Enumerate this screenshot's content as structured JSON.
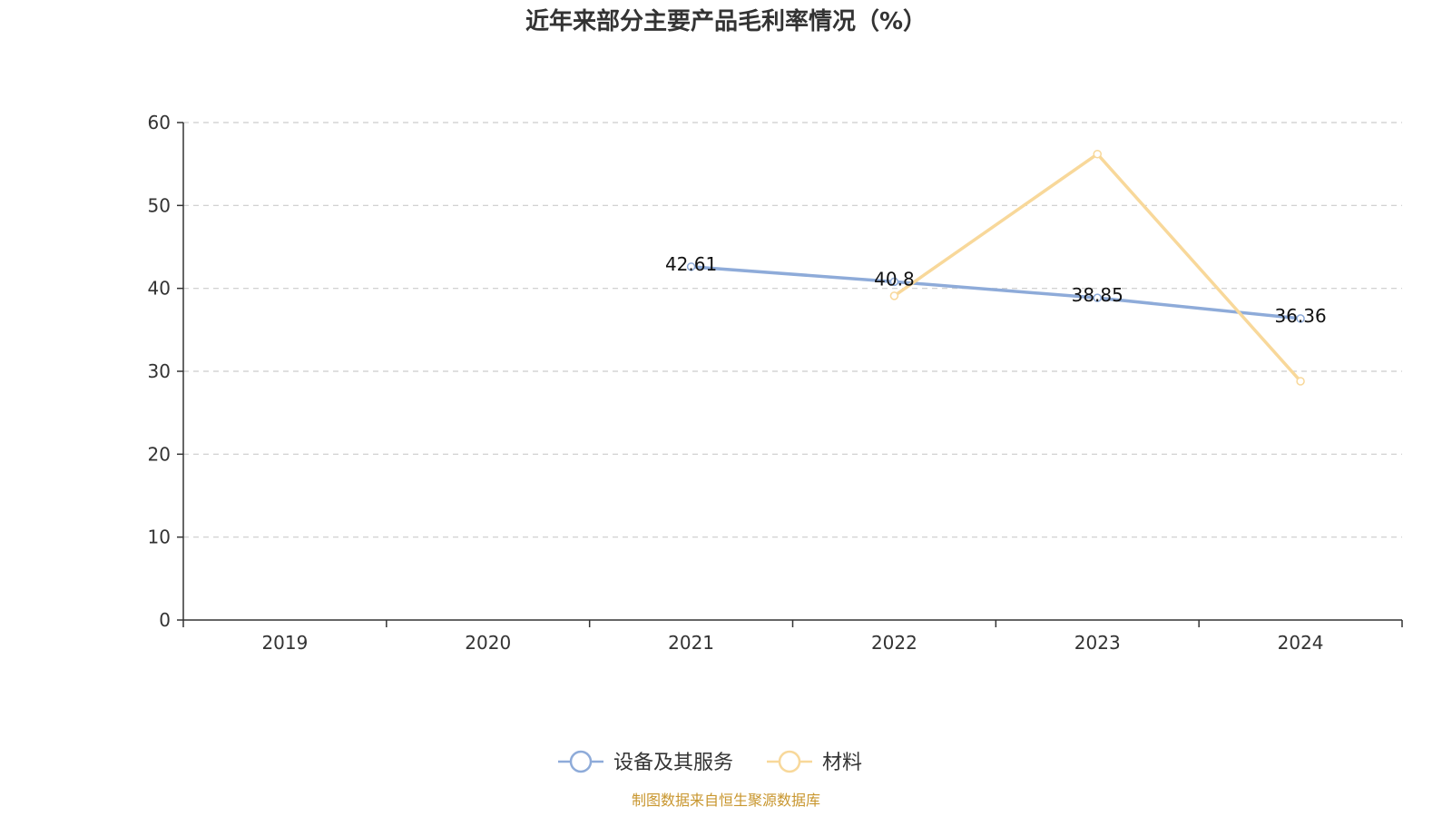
{
  "chart_data": {
    "type": "line",
    "title": "近年来部分主要产品毛利率情况（%）",
    "categories": [
      "2019",
      "2020",
      "2021",
      "2022",
      "2023",
      "2024"
    ],
    "ylim": [
      0,
      60
    ],
    "yticks": [
      0,
      10,
      20,
      30,
      40,
      50,
      60
    ],
    "grid": true,
    "legend_position": "bottom-center",
    "series": [
      {
        "name": "设备及其服务",
        "color": "#8eabd9",
        "values": [
          null,
          null,
          42.61,
          40.8,
          38.85,
          36.36
        ],
        "labels": [
          "",
          "",
          "42.61",
          "40.8",
          "38.85",
          "36.36"
        ]
      },
      {
        "name": "材料",
        "color": "#f8d89a",
        "values": [
          null,
          null,
          null,
          39.1,
          56.2,
          28.8
        ],
        "labels": [
          "",
          "",
          "",
          "",
          "",
          ""
        ]
      }
    ],
    "source": "制图数据来自恒生聚源数据库",
    "source_color": "#c8962e"
  }
}
